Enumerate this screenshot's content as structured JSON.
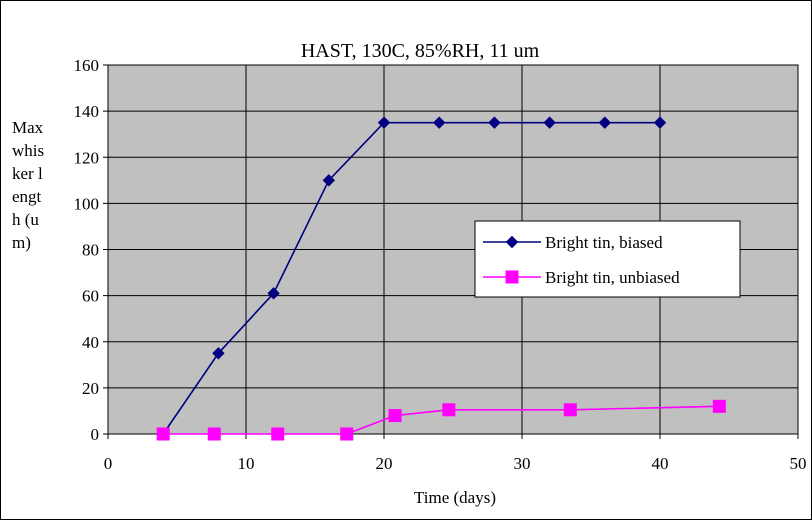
{
  "chart_data": {
    "type": "line",
    "title": "HAST, 130C, 85%RH, 11 um",
    "xlabel": "Time (days)",
    "ylabel": "Max whisker length (um)",
    "xlim": [
      0,
      50
    ],
    "ylim": [
      0,
      160
    ],
    "xticks": [
      0,
      10,
      20,
      30,
      40,
      50
    ],
    "yticks": [
      0,
      20,
      40,
      60,
      80,
      100,
      120,
      140,
      160
    ],
    "grid": true,
    "plot_background": "#c0c0c0",
    "legend_position": "right",
    "series": [
      {
        "name": "Bright tin, biased",
        "color": "#000080",
        "marker": "diamond",
        "x": [
          4,
          8,
          12,
          16,
          20,
          24,
          28,
          32,
          36,
          40
        ],
        "y": [
          0,
          35,
          61,
          110,
          135,
          135,
          135,
          135,
          135,
          135
        ]
      },
      {
        "name": "Bright tin, unbiased",
        "color": "#ff00ff",
        "marker": "square",
        "x": [
          4,
          7.7,
          12.3,
          17.3,
          20.8,
          24.7,
          33.5,
          44.3
        ],
        "y": [
          0,
          0,
          0,
          0,
          8,
          10.5,
          10.5,
          12
        ]
      }
    ]
  }
}
